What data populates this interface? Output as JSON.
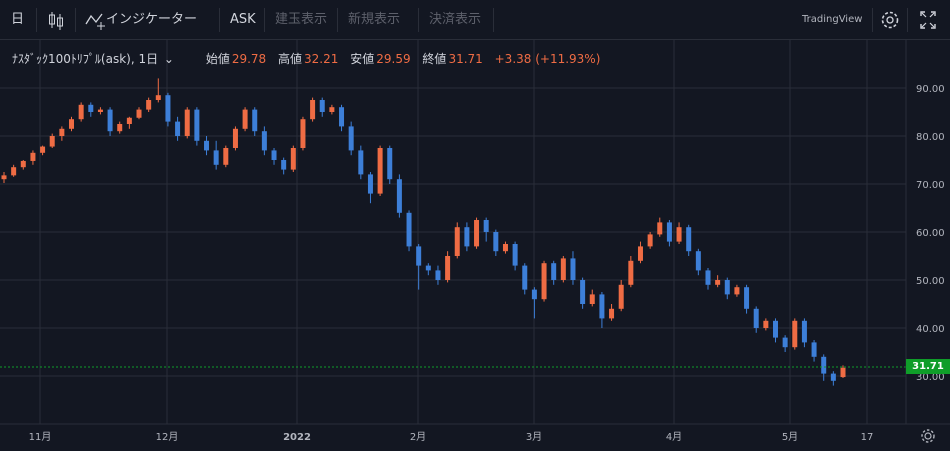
{
  "toolbar": {
    "timeframe": "日",
    "indicator_label": "インジケーター",
    "ask_label": "ASK",
    "build_position_label": "建玉表示",
    "new_order_label": "新規表示",
    "settlement_label": "決済表示",
    "brand": "TradingView"
  },
  "legend": {
    "symbol": "ﾅｽﾀﾞｯｸ100ﾄﾘﾌﾟﾙ(ask), 1日",
    "open_label": "始値",
    "open": "29.78",
    "high_label": "高値",
    "high": "32.21",
    "low_label": "安値",
    "low": "29.59",
    "close_label": "終値",
    "close": "31.71",
    "change": "+3.38 (+11.93%)"
  },
  "price_tag": "31.71",
  "colors": {
    "up": "#ef6c44",
    "down": "#3d7fd8",
    "bg": "#131722",
    "grid": "#2a2e39",
    "last_price": "#0f9d29"
  },
  "chart_data": {
    "type": "candlestick",
    "y_ticks": [
      "90.00",
      "80.00",
      "70.00",
      "60.00",
      "50.00",
      "40.00",
      "30.00"
    ],
    "x_ticks": [
      "11月",
      "12月",
      "2022",
      "2月",
      "3月",
      "4月",
      "5月",
      "17"
    ],
    "ylim": [
      24,
      100
    ],
    "last_price": 31.71,
    "candles": [
      [
        71,
        72.5,
        70.2,
        71.8
      ],
      [
        71.8,
        74,
        71.5,
        73.5
      ],
      [
        73.5,
        75,
        73,
        74.8
      ],
      [
        74.8,
        77,
        74,
        76.5
      ],
      [
        76.5,
        78,
        76,
        77.8
      ],
      [
        77.8,
        80.5,
        77.5,
        80
      ],
      [
        80,
        82,
        79,
        81.5
      ],
      [
        81.5,
        84,
        81,
        83.5
      ],
      [
        83.5,
        87,
        83,
        86.5
      ],
      [
        86.5,
        87,
        84,
        85
      ],
      [
        85,
        86,
        84.5,
        85.5
      ],
      [
        85.5,
        86,
        80,
        81
      ],
      [
        81,
        83,
        80.5,
        82.5
      ],
      [
        82.5,
        84,
        81.5,
        83.8
      ],
      [
        83.8,
        86,
        83.5,
        85.5
      ],
      [
        85.5,
        88,
        85,
        87.5
      ],
      [
        87.5,
        92,
        87,
        88.5
      ],
      [
        88.5,
        89,
        82,
        83
      ],
      [
        83,
        84,
        79,
        80
      ],
      [
        80,
        86,
        79.5,
        85.5
      ],
      [
        85.5,
        86,
        78,
        79
      ],
      [
        79,
        80,
        76,
        77
      ],
      [
        77,
        79,
        73,
        74
      ],
      [
        74,
        78,
        73.5,
        77.5
      ],
      [
        77.5,
        82,
        77,
        81.5
      ],
      [
        81.5,
        86,
        81,
        85.5
      ],
      [
        85.5,
        86,
        80,
        81
      ],
      [
        81,
        82,
        76,
        77
      ],
      [
        77,
        77.5,
        74,
        75
      ],
      [
        75,
        75.5,
        72,
        73
      ],
      [
        73,
        78,
        72.5,
        77.5
      ],
      [
        77.5,
        84,
        77,
        83.5
      ],
      [
        83.5,
        88,
        83,
        87.5
      ],
      [
        87.5,
        88,
        84,
        85
      ],
      [
        85,
        86.5,
        84.5,
        86
      ],
      [
        86,
        86.5,
        81,
        82
      ],
      [
        82,
        83,
        76,
        77
      ],
      [
        77,
        78,
        71,
        72
      ],
      [
        72,
        72.5,
        66,
        68
      ],
      [
        68,
        78,
        67.5,
        77.5
      ],
      [
        77.5,
        78,
        70,
        71
      ],
      [
        71,
        72,
        63,
        64
      ],
      [
        64,
        64.5,
        56,
        57
      ],
      [
        57,
        57.5,
        48,
        53
      ],
      [
        53,
        53.5,
        51,
        52
      ],
      [
        52,
        53,
        49,
        50
      ],
      [
        50,
        56,
        49.5,
        55
      ],
      [
        55,
        62,
        54.5,
        61
      ],
      [
        61,
        62,
        56,
        57
      ],
      [
        57,
        63,
        56.5,
        62.5
      ],
      [
        62.5,
        63,
        58,
        60
      ],
      [
        60,
        60.5,
        55,
        56
      ],
      [
        56,
        58,
        55.5,
        57.5
      ],
      [
        57.5,
        58,
        52,
        53
      ],
      [
        53,
        53.5,
        47,
        48
      ],
      [
        48,
        48.5,
        42,
        46
      ],
      [
        46,
        54,
        45.5,
        53.5
      ],
      [
        53.5,
        54,
        49,
        50
      ],
      [
        50,
        55,
        49.5,
        54.5
      ],
      [
        54.5,
        56,
        49,
        50
      ],
      [
        50,
        50.5,
        44,
        45
      ],
      [
        45,
        48,
        44.5,
        47
      ],
      [
        47,
        47.5,
        40,
        42
      ],
      [
        42,
        45,
        41.5,
        44
      ],
      [
        44,
        50,
        43.5,
        49
      ],
      [
        49,
        55,
        48.5,
        54
      ],
      [
        54,
        58,
        53.5,
        57
      ],
      [
        57,
        60,
        56.5,
        59.5
      ],
      [
        59.5,
        63,
        59,
        62
      ],
      [
        62,
        62.5,
        57,
        58
      ],
      [
        58,
        62,
        57.5,
        61
      ],
      [
        61,
        61.5,
        55,
        56
      ],
      [
        56,
        56.5,
        51,
        52
      ],
      [
        52,
        52.5,
        48,
        49
      ],
      [
        49,
        51,
        48.5,
        50
      ],
      [
        50,
        50.5,
        46,
        47
      ],
      [
        47,
        49,
        46.5,
        48.5
      ],
      [
        48.5,
        49,
        43,
        44
      ],
      [
        44,
        44.5,
        39,
        40
      ],
      [
        40,
        42,
        39.5,
        41.5
      ],
      [
        41.5,
        42,
        37,
        38
      ],
      [
        38,
        38.5,
        35,
        36
      ],
      [
        36,
        42,
        35.5,
        41.5
      ],
      [
        41.5,
        42,
        36,
        37
      ],
      [
        37,
        37.5,
        33,
        34
      ],
      [
        34,
        34.5,
        29,
        30.5
      ],
      [
        30.5,
        31,
        28,
        29
      ],
      [
        29.78,
        32.21,
        29.59,
        31.71
      ]
    ]
  }
}
